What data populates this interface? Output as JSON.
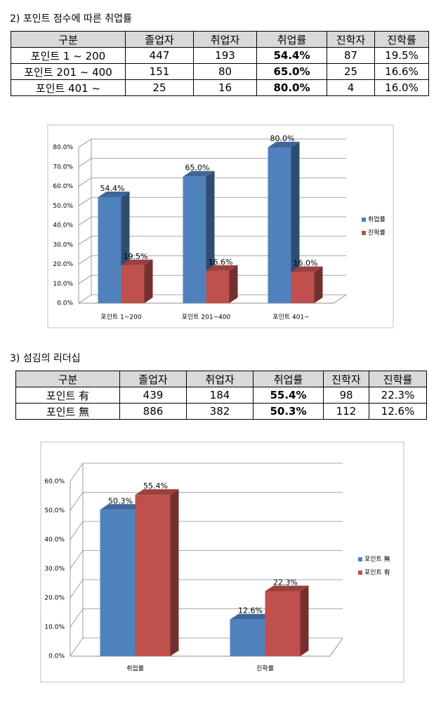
{
  "sections": [
    {
      "title": "2) 포인트 점수에 따른 취업률",
      "table": {
        "header": [
          "구분",
          "졸업자",
          "취업자",
          "취업률",
          "진학자",
          "진학률"
        ],
        "rows": [
          [
            "포인트 1 ~ 200",
            "447",
            "193",
            "54.4%",
            "87",
            "19.5%"
          ],
          [
            "포인트 201 ~ 400",
            "151",
            "80",
            "65.0%",
            "25",
            "16.6%"
          ],
          [
            "포인트 401 ~",
            "25",
            "16",
            "80.0%",
            "4",
            "16.0%"
          ]
        ]
      }
    },
    {
      "title": "3) 섬김의 리더십",
      "table": {
        "header": [
          "구분",
          "졸업자",
          "취업자",
          "취업률",
          "진학자",
          "진학률"
        ],
        "rows": [
          [
            "포인트 有",
            "439",
            "184",
            "55.4%",
            "98",
            "22.3%"
          ],
          [
            "포인트 無",
            "886",
            "382",
            "50.3%",
            "112",
            "12.6%"
          ]
        ]
      }
    }
  ],
  "chart_data": [
    {
      "type": "bar",
      "categories": [
        "포인트 1~200",
        "포인트 201~400",
        "포인트 401~"
      ],
      "series": [
        {
          "name": "취업률",
          "color": "#4f81bd",
          "values": [
            54.4,
            65.0,
            80.0
          ],
          "value_labels": [
            "54.4%",
            "65.0%",
            "80.0%"
          ]
        },
        {
          "name": "진학률",
          "color": "#c0504d",
          "values": [
            19.5,
            16.6,
            16.0
          ],
          "value_labels": [
            "19.5%",
            "16.6%",
            "16.0%"
          ]
        }
      ],
      "ylim": [
        0,
        80
      ],
      "yticks": [
        {
          "value": 0,
          "label": "0.0%"
        },
        {
          "value": 10,
          "label": "10.0%"
        },
        {
          "value": 20,
          "label": "20.0%"
        },
        {
          "value": 30,
          "label": "30.0%"
        },
        {
          "value": 40,
          "label": "40.0%"
        },
        {
          "value": 50,
          "label": "50.0%"
        },
        {
          "value": 60,
          "label": "60.0%"
        },
        {
          "value": 70,
          "label": "70.0%"
        },
        {
          "value": 80,
          "label": "80.0%"
        }
      ],
      "grid": true,
      "legend": "right"
    },
    {
      "type": "bar",
      "categories": [
        "취업률",
        "진학률"
      ],
      "series": [
        {
          "name": "포인트 無",
          "color": "#4f81bd",
          "values": [
            50.3,
            12.6
          ],
          "value_labels": [
            "50.3%",
            "12.6%"
          ]
        },
        {
          "name": "포인트 有",
          "color": "#c0504d",
          "values": [
            55.4,
            22.3
          ],
          "value_labels": [
            "55.4%",
            "22.3%"
          ]
        }
      ],
      "ylim": [
        0,
        60
      ],
      "yticks": [
        {
          "value": 0,
          "label": "0.0%"
        },
        {
          "value": 10,
          "label": "10.0%"
        },
        {
          "value": 20,
          "label": "20.0%"
        },
        {
          "value": 30,
          "label": "30.0%"
        },
        {
          "value": 40,
          "label": "40.0%"
        },
        {
          "value": 50,
          "label": "50.0%"
        },
        {
          "value": 60,
          "label": "60.0%"
        }
      ],
      "grid": true,
      "legend": "right"
    }
  ]
}
